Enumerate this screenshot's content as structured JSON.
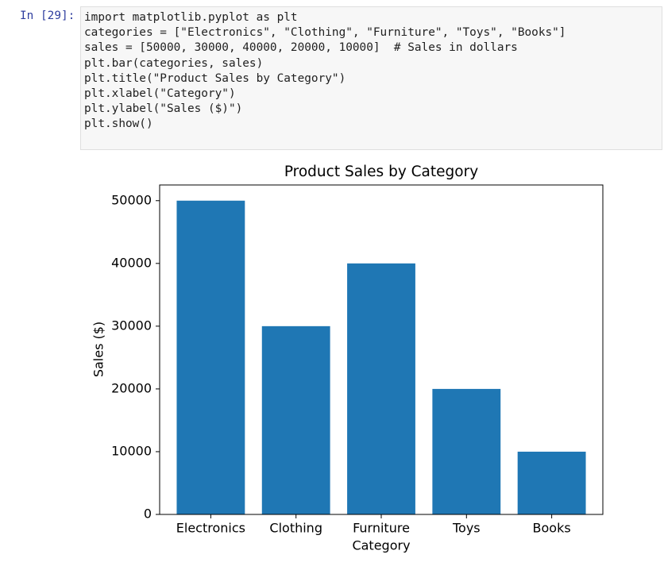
{
  "cell": {
    "prompt": "In [29]:",
    "code_lines": [
      "import matplotlib.pyplot as plt",
      "categories = [\"Electronics\", \"Clothing\", \"Furniture\", \"Toys\", \"Books\"]",
      "sales = [50000, 30000, 40000, 20000, 10000]  # Sales in dollars",
      "plt.bar(categories, sales)",
      "plt.title(\"Product Sales by Category\")",
      "plt.xlabel(\"Category\")",
      "plt.ylabel(\"Sales ($)\")",
      "plt.show()"
    ]
  },
  "chart_data": {
    "type": "bar",
    "title": "Product Sales by Category",
    "x_label": "Category",
    "y_label": "Sales ($)",
    "categories": [
      "Electronics",
      "Clothing",
      "Furniture",
      "Toys",
      "Books"
    ],
    "values": [
      50000,
      30000,
      40000,
      20000,
      10000
    ],
    "color": "#1f77b4",
    "ylim": [
      0,
      52500
    ],
    "yticks": [
      0,
      10000,
      20000,
      30000,
      40000,
      50000
    ],
    "grid": false
  }
}
